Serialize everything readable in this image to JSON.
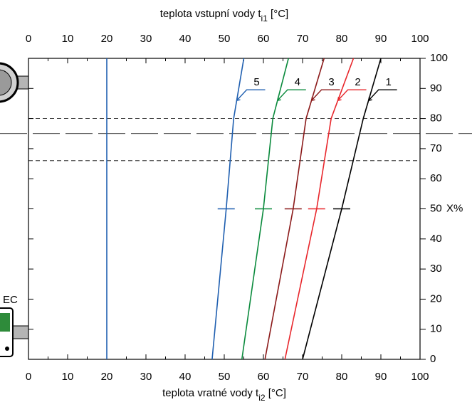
{
  "chart_data": {
    "type": "line",
    "x2label": [
      "teplota vstupní vody t",
      "i1",
      " [°C]"
    ],
    "xlabel": [
      "teplota vratné vody t",
      "i2",
      " [°C]"
    ],
    "y_label": "X%",
    "device_label": "EC",
    "xlim": [
      0,
      100
    ],
    "xticks": [
      0,
      10,
      20,
      30,
      40,
      50,
      60,
      70,
      80,
      90,
      100
    ],
    "ylim": [
      0,
      100
    ],
    "yticks": [
      0,
      10,
      20,
      30,
      40,
      50,
      60,
      70,
      80,
      90,
      100
    ],
    "y_label_at": 50,
    "vline": {
      "value": 20,
      "color": "#1f5fb0"
    },
    "hlines": [
      {
        "value": 80,
        "style": "short"
      },
      {
        "value": 75,
        "style": "long"
      },
      {
        "value": 66,
        "style": "short"
      }
    ],
    "series": [
      {
        "name": "1",
        "color": "#000000",
        "x": [
          70,
          80,
          85.5,
          90
        ],
        "values": [
          0,
          50,
          80,
          100
        ]
      },
      {
        "name": "2",
        "color": "#e8262b",
        "x": [
          65.5,
          73.6,
          77.3,
          83
        ],
        "values": [
          0,
          50,
          80,
          100
        ]
      },
      {
        "name": "3",
        "color": "#8b1a1a",
        "x": [
          60.4,
          67.6,
          70.9,
          75.5
        ],
        "values": [
          0,
          50,
          80,
          100
        ]
      },
      {
        "name": "4",
        "color": "#0a8a3c",
        "x": [
          54.5,
          60,
          62.4,
          66.4
        ],
        "values": [
          0,
          50,
          80,
          100
        ]
      },
      {
        "name": "5",
        "color": "#1f5fb0",
        "x": [
          46.9,
          50.5,
          52.4,
          55
        ],
        "values": [
          0,
          50,
          80,
          100
        ]
      }
    ]
  }
}
